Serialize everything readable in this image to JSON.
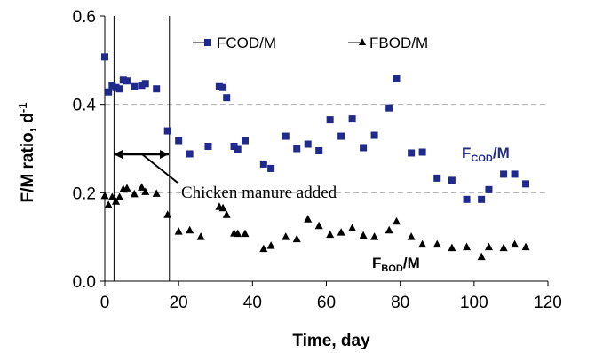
{
  "chart_data": {
    "type": "scatter",
    "xlabel": "Time, day",
    "ylabel": "F/M ratio, d",
    "ylabel_sup": "-1",
    "xlim": [
      0,
      120
    ],
    "ylim": [
      0.0,
      0.6
    ],
    "xticks": [
      "0",
      "20",
      "40",
      "60",
      "80",
      "100",
      "120"
    ],
    "yticks": [
      "0.0",
      "0.2",
      "0.4",
      "0.6"
    ],
    "grid": "horizontal dashed",
    "legend_position": "top-center",
    "series": [
      {
        "name": "FCOD/M",
        "color": "#1f2a8c",
        "marker": "square",
        "x": [
          0,
          1,
          2,
          3,
          4,
          5,
          6,
          8,
          10,
          11,
          14,
          17,
          20,
          23,
          28,
          31,
          32,
          33,
          35,
          36,
          38,
          43,
          45,
          49,
          52,
          55,
          58,
          61,
          64,
          67,
          70,
          73,
          77,
          79,
          83,
          86,
          90,
          94,
          98,
          102,
          104,
          108,
          111,
          114
        ],
        "y": [
          0.507,
          0.428,
          0.443,
          0.438,
          0.435,
          0.455,
          0.453,
          0.44,
          0.443,
          0.447,
          0.435,
          0.34,
          0.318,
          0.288,
          0.305,
          0.44,
          0.438,
          0.415,
          0.305,
          0.298,
          0.318,
          0.265,
          0.255,
          0.328,
          0.3,
          0.31,
          0.295,
          0.365,
          0.328,
          0.367,
          0.302,
          0.33,
          0.392,
          0.458,
          0.29,
          0.292,
          0.233,
          0.228,
          0.185,
          0.185,
          0.207,
          0.242,
          0.242,
          0.22
        ]
      },
      {
        "name": "FBOD/M",
        "color": "#000000",
        "marker": "triangle",
        "x": [
          0,
          1,
          2,
          3,
          4,
          5,
          6,
          8,
          10,
          11,
          14,
          17,
          20,
          23,
          26,
          31,
          32,
          33,
          35,
          36,
          38,
          43,
          45,
          49,
          52,
          55,
          58,
          61,
          64,
          67,
          70,
          73,
          77,
          79,
          83,
          86,
          90,
          94,
          98,
          102,
          104,
          108,
          111,
          114
        ],
        "y": [
          0.193,
          0.172,
          0.19,
          0.18,
          0.19,
          0.208,
          0.21,
          0.197,
          0.212,
          0.202,
          0.198,
          0.15,
          0.112,
          0.115,
          0.1,
          0.168,
          0.165,
          0.15,
          0.108,
          0.107,
          0.107,
          0.073,
          0.08,
          0.1,
          0.095,
          0.14,
          0.125,
          0.105,
          0.11,
          0.12,
          0.103,
          0.1,
          0.115,
          0.135,
          0.1,
          0.083,
          0.083,
          0.075,
          0.077,
          0.055,
          0.077,
          0.075,
          0.083,
          0.077
        ]
      }
    ],
    "annotations": {
      "chicken_manure": "Chicken manure added",
      "fcod_label_main": "F",
      "fcod_label_sub": "COD",
      "fcod_label_tail": "/M",
      "fbod_label_main": "F",
      "fbod_label_sub": "BOD",
      "fbod_label_tail": "/M"
    }
  }
}
